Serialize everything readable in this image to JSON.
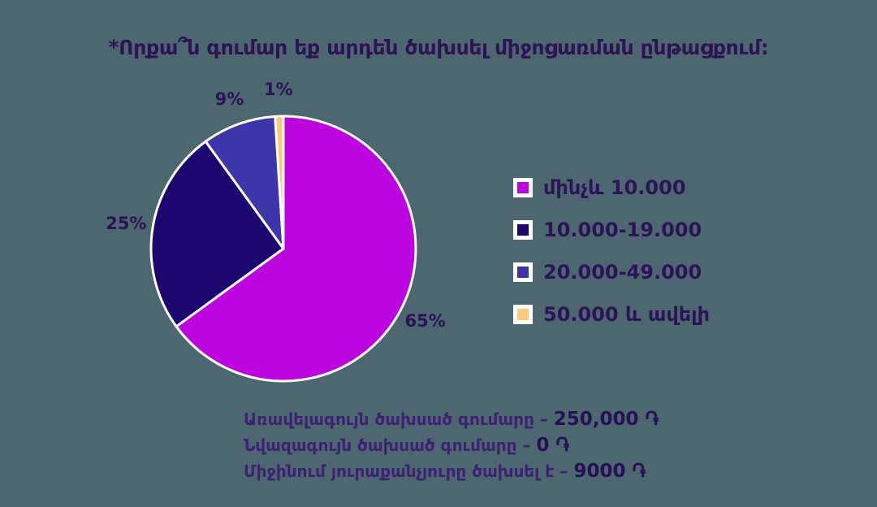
{
  "title": "*Որքա՞ն գումար եք արդեն ծախսել միջոցառման ընթացքում:",
  "colors": {
    "background": "#4C6770",
    "title_text": "#2E1355",
    "percent_label_text": "#2A1456",
    "legend_text": "#2D1458",
    "stat_label_text": "#3E2173",
    "stat_value_text": "#261155",
    "slice_border": "#FFFFFF"
  },
  "chart_data": {
    "type": "pie",
    "title": "*Որքա՞ն գումար եք արդեն ծախսել միջոցառման ընթացքում:",
    "start_angle_deg": 0,
    "direction": "clockwise",
    "legend_position": "right",
    "data_labels_format": "percent",
    "slices": [
      {
        "label": "մինչև 10.000",
        "value": 65,
        "percent_label": "65%",
        "color": "#BC05DE"
      },
      {
        "label": "10.000-19.000",
        "value": 25,
        "percent_label": "25%",
        "color": "#1D0670"
      },
      {
        "label": "20.000-49.000",
        "value": 9,
        "percent_label": "9%",
        "color": "#3D36AB"
      },
      {
        "label": "50.000 և ավելի",
        "value": 1,
        "percent_label": "1%",
        "color": "#FAC97E"
      }
    ]
  },
  "stats": [
    {
      "label": "Առավելագույն ծախսած գումարը",
      "separator": "–",
      "value": "250,000 ֏"
    },
    {
      "label": "Նվազագույն ծախսած գումարը",
      "separator": "–",
      "value": "0 ֏"
    },
    {
      "label": "Միջինում յուրաքանչյուրը ծախսել է",
      "separator": "–",
      "value": "9000 ֏"
    }
  ]
}
